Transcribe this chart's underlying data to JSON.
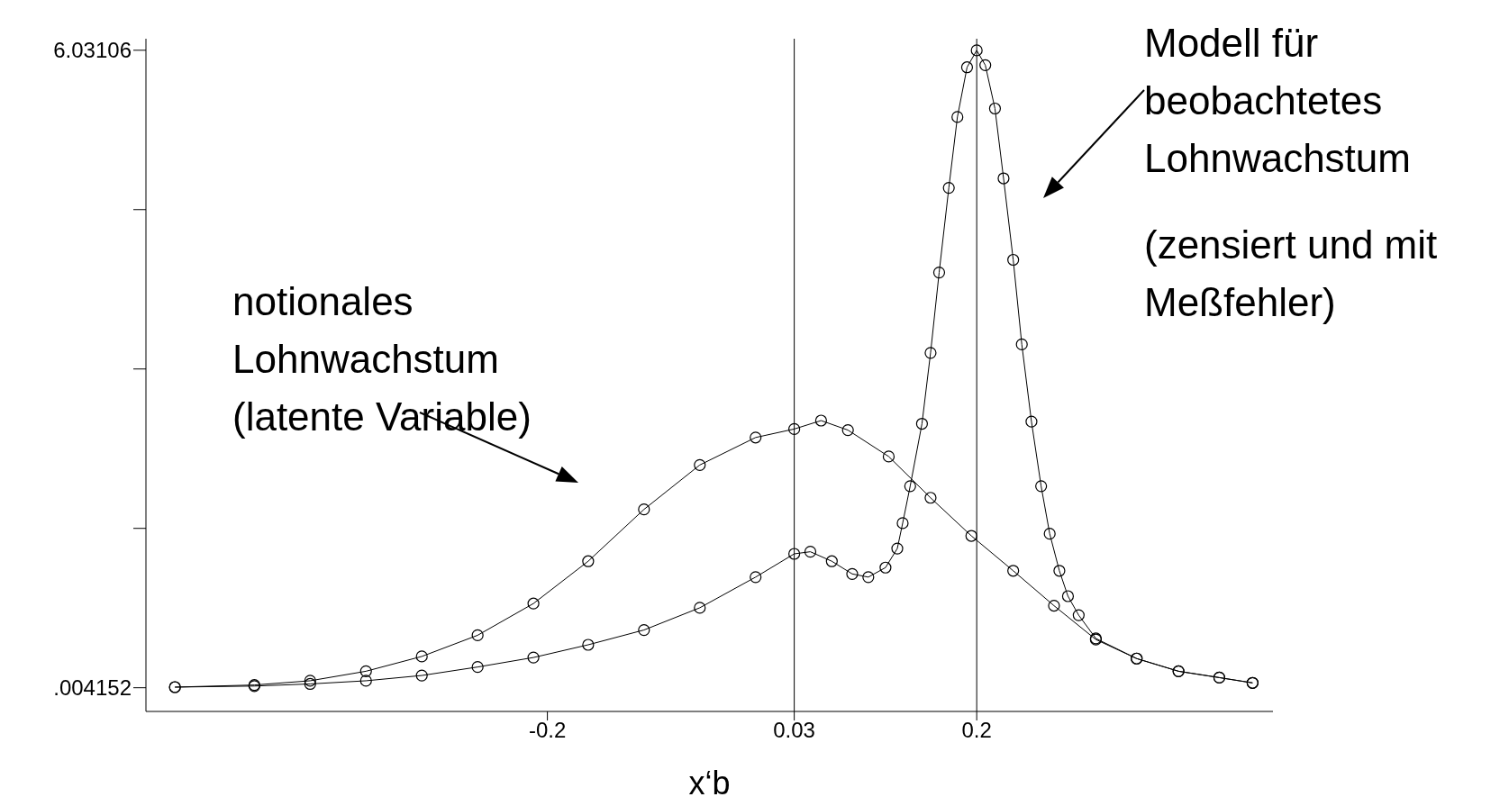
{
  "chart_data": {
    "type": "line",
    "xlabel": "x‘b",
    "marker": "circle",
    "grid": false,
    "legend": false,
    "xlim": [
      -0.574,
      0.476
    ],
    "xticks": [
      -0.2,
      0.03,
      0.2
    ],
    "ylim": [
      -0.22,
      6.14
    ],
    "yticks": [
      {
        "value": 0.004152,
        "label": ".004152"
      },
      {
        "value": 1.510879,
        "label": null
      },
      {
        "value": 3.017606,
        "label": null
      },
      {
        "value": 4.524333,
        "label": null
      },
      {
        "value": 6.03106,
        "label": "6.03106"
      }
    ],
    "ref_lines": [
      {
        "axis": "x",
        "value": 0.03,
        "color": "#000000"
      },
      {
        "axis": "x",
        "value": 0.2,
        "color": "#000000"
      }
    ],
    "annotations": [
      "notionales\nLohnwachstum\n(latente Variable)",
      "Modell für\nbeobachtetes\nLohnwachstum",
      "(zensiert und mit\nMeßfehler)"
    ],
    "series": [
      {
        "color": "#000000",
        "x": [
          -0.547,
          -0.473,
          -0.421,
          -0.369,
          -0.317,
          -0.265,
          -0.213,
          -0.162,
          -0.11,
          -0.058,
          -0.006,
          0.03,
          0.055,
          0.08,
          0.118,
          0.157,
          0.195,
          0.234,
          0.272,
          0.311,
          0.349,
          0.388,
          0.426,
          0.457
        ],
        "values": [
          0.01,
          0.03,
          0.07,
          0.16,
          0.3,
          0.5,
          0.8,
          1.2,
          1.69,
          2.11,
          2.37,
          2.45,
          2.53,
          2.44,
          2.19,
          1.8,
          1.44,
          1.11,
          0.78,
          0.46,
          0.28,
          0.16,
          0.1,
          0.05
        ]
      },
      {
        "color": "#000000",
        "x": [
          -0.547,
          -0.473,
          -0.421,
          -0.369,
          -0.317,
          -0.265,
          -0.213,
          -0.162,
          -0.11,
          -0.058,
          -0.006,
          0.03,
          0.045,
          0.065,
          0.084,
          0.099,
          0.115,
          0.126,
          0.131,
          0.138,
          0.149,
          0.157,
          0.165,
          0.174,
          0.182,
          0.191,
          0.2,
          0.208,
          0.217,
          0.225,
          0.234,
          0.242,
          0.251,
          0.26,
          0.268,
          0.277,
          0.285,
          0.295,
          0.311,
          0.349,
          0.388,
          0.426,
          0.457
        ],
        "values": [
          0.01,
          0.02,
          0.04,
          0.07,
          0.12,
          0.2,
          0.29,
          0.41,
          0.55,
          0.76,
          1.05,
          1.27,
          1.29,
          1.2,
          1.08,
          1.05,
          1.14,
          1.32,
          1.56,
          1.91,
          2.5,
          3.17,
          3.93,
          4.73,
          5.4,
          5.87,
          6.03,
          5.89,
          5.48,
          4.82,
          4.05,
          3.25,
          2.52,
          1.91,
          1.46,
          1.11,
          0.87,
          0.69,
          0.47,
          0.28,
          0.16,
          0.1,
          0.05
        ]
      }
    ]
  }
}
